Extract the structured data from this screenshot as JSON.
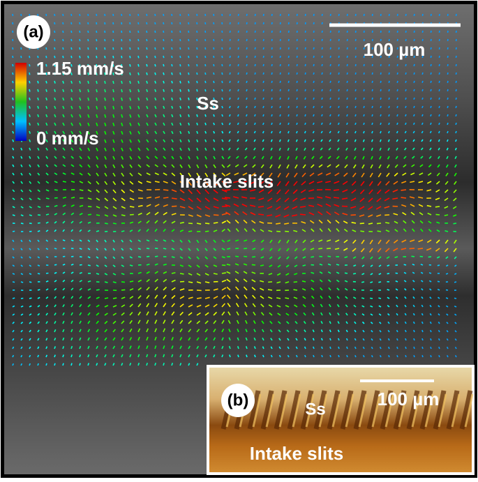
{
  "panel_a": {
    "label": "(a)",
    "scale_bar": "100 µm",
    "colorbar_max": "1.15 mm/s",
    "colorbar_min": "0 mm/s",
    "labels": [
      "Ss",
      "Intake slits"
    ]
  },
  "panel_b": {
    "label": "(b)",
    "scale_bar": "100 µm",
    "labels": [
      "Ss",
      "Intake slits"
    ]
  }
}
